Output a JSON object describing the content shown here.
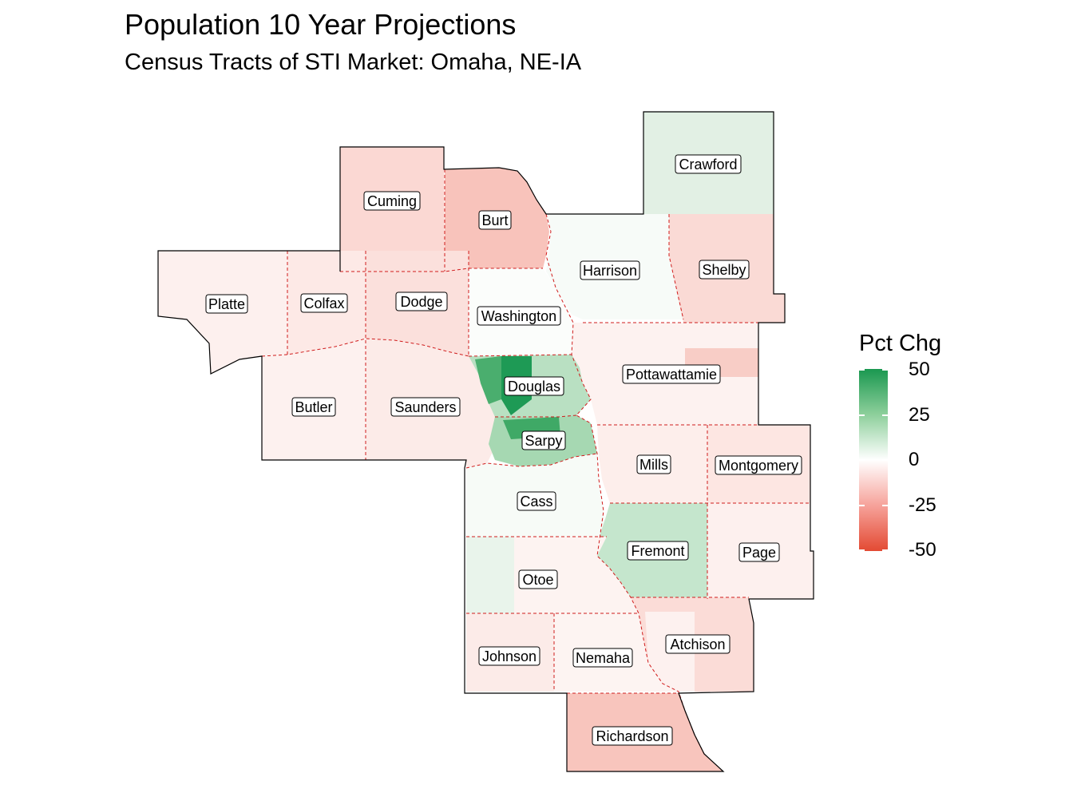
{
  "title": "Population 10 Year Projections",
  "subtitle": "Census Tracts of STI Market: Omaha, NE-IA",
  "legend": {
    "title": "Pct Chg",
    "ticks": [
      "50",
      "25",
      "0",
      "-25",
      "-50"
    ],
    "colors": {
      "high": "#1a9850",
      "mid": "#ffffff",
      "low": "#e34a33"
    }
  },
  "counties": {
    "cuming": "Cuming",
    "burt": "Burt",
    "crawford": "Crawford",
    "harrison": "Harrison",
    "shelby": "Shelby",
    "platte": "Platte",
    "colfax": "Colfax",
    "dodge": "Dodge",
    "washington": "Washington",
    "butler": "Butler",
    "saunders": "Saunders",
    "douglas": "Douglas",
    "pottawattamie": "Pottawattamie",
    "sarpy": "Sarpy",
    "mills": "Mills",
    "montgomery": "Montgomery",
    "cass": "Cass",
    "fremont": "Fremont",
    "page": "Page",
    "otoe": "Otoe",
    "johnson": "Johnson",
    "nemaha": "Nemaha",
    "atchison": "Atchison",
    "richardson": "Richardson"
  }
}
